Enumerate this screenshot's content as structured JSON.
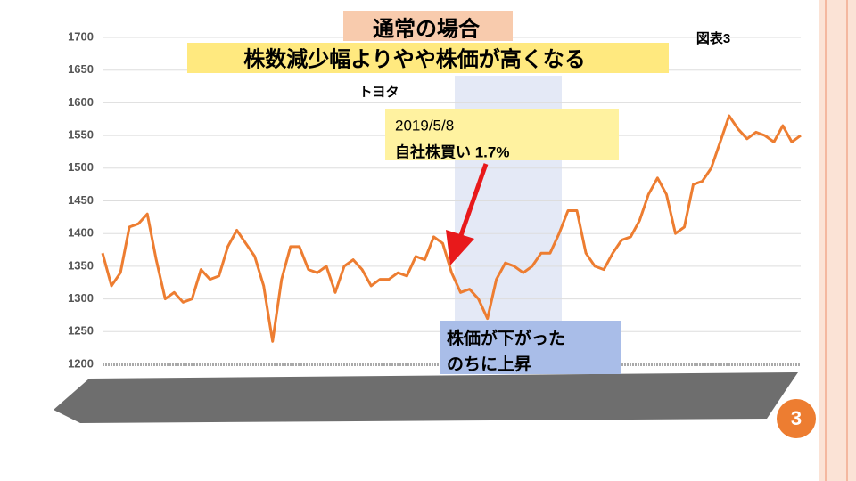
{
  "chart_data": {
    "type": "line",
    "title": "通常の場合",
    "subtitle": "株数減少幅よりやや株価が高くなる",
    "figure_label": "図表3",
    "ylim": [
      1200,
      1700
    ],
    "yticks": [
      1200,
      1250,
      1300,
      1350,
      1400,
      1450,
      1500,
      1550,
      1600,
      1650,
      1700
    ],
    "grid": true,
    "series": [
      {
        "name": "トヨタ",
        "color": "#ed7d31",
        "values": [
          1370,
          1320,
          1340,
          1410,
          1415,
          1430,
          1360,
          1300,
          1310,
          1295,
          1300,
          1345,
          1330,
          1335,
          1380,
          1405,
          1385,
          1365,
          1320,
          1235,
          1330,
          1380,
          1380,
          1345,
          1340,
          1350,
          1310,
          1350,
          1360,
          1345,
          1320,
          1330,
          1330,
          1340,
          1335,
          1365,
          1360,
          1395,
          1385,
          1340,
          1310,
          1315,
          1300,
          1270,
          1330,
          1355,
          1350,
          1340,
          1350,
          1370,
          1370,
          1400,
          1435,
          1435,
          1370,
          1350,
          1345,
          1370,
          1390,
          1395,
          1420,
          1460,
          1485,
          1460,
          1400,
          1410,
          1475,
          1480,
          1500,
          1540,
          1580,
          1560,
          1545,
          1555,
          1550,
          1540,
          1565,
          1540,
          1550
        ]
      }
    ],
    "annotations": [
      {
        "lines": [
          "2019/5/8",
          "自社株買い 1.7%"
        ]
      },
      {
        "lines": [
          "株価が下がった",
          "のちに上昇"
        ]
      }
    ]
  },
  "slide": {
    "page_number": 3
  }
}
